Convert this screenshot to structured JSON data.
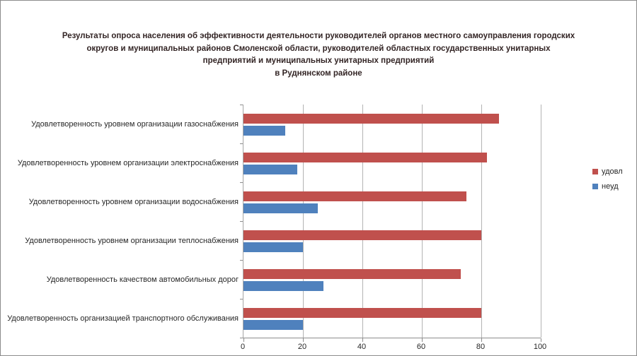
{
  "chart_data": {
    "type": "bar",
    "orientation": "horizontal",
    "title": "Результаты опроса населения об эффективности деятельности руководителей органов местного самоуправления городских округов и муниципальных районов Смоленской области, руководителей областных государственных унитарных предприятий и муниципальных унитарных предприятий в Руднянском районе",
    "title_lines": [
      "Результаты опроса населения об эффективности деятельности руководителей органов местного самоуправления городских",
      "округов и муниципальных районов Смоленской области, руководителей областных государственных унитарных",
      "предприятий и муниципальных унитарных предприятий",
      "в Руднянском районе"
    ],
    "categories": [
      "Удовлетворенность уровнем организации газоснабжения",
      "Удовлетворенность уровнем организации электроснабжения",
      "Удовлетворенность уровнем организации водоснабжения",
      "Удовлетворенность уровнем организации теплоснабжения",
      "Удовлетворенность качеством автомобильных дорог",
      "Удовлетворенность организацией транспортного обслуживания"
    ],
    "series": [
      {
        "name": "удовл",
        "color": "#C0504D",
        "values": [
          86,
          82,
          75,
          80,
          73,
          80
        ]
      },
      {
        "name": "неуд",
        "color": "#4F81BD",
        "values": [
          14,
          18,
          25,
          20,
          27,
          20
        ]
      }
    ],
    "xlim": [
      0,
      100
    ],
    "x_ticks": [
      0,
      20,
      40,
      60,
      80,
      100
    ],
    "grid": true,
    "legend_position": "right",
    "style": {
      "gridline_color": "#b3b3b3",
      "axis_color": "#8c8c8c",
      "text_color": "#262626",
      "title_color": "#332525",
      "background": "#ffffff"
    }
  }
}
